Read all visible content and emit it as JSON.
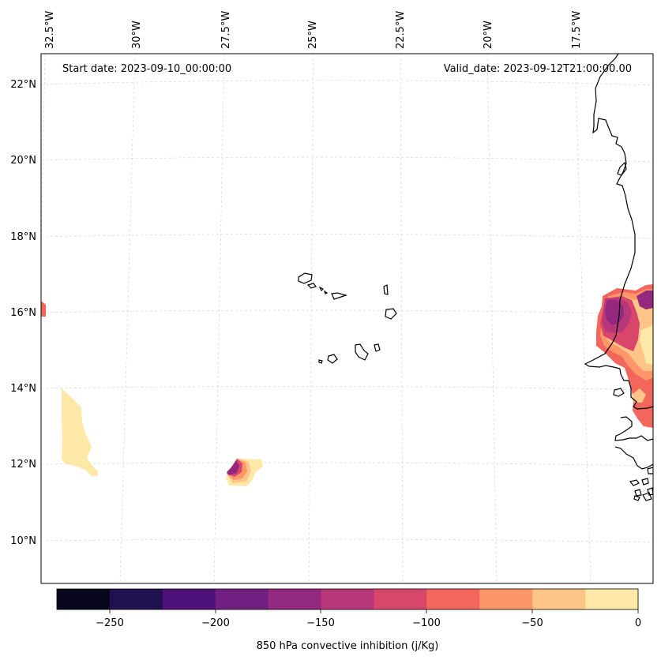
{
  "header": {
    "start_date": "Start date: 2023-09-10_00:00:00",
    "valid_date": "Valid_date: 2023-09-12T21:00:00.00"
  },
  "map": {
    "lon_labels": [
      "32.5°W",
      "30°W",
      "27.5°W",
      "25°W",
      "22.5°W",
      "20°W",
      "17.5°W"
    ],
    "lat_labels": [
      "22°N",
      "20°N",
      "18°N",
      "16°N",
      "14°N",
      "12°N",
      "10°N"
    ],
    "gridlines": "dashed light gray",
    "coastline_color": "#000000",
    "features": [
      "cape-verde-islands",
      "west-africa-coast"
    ]
  },
  "colorbar": {
    "label": "850 hPa convective inhibition (j/Kg)",
    "ticks": [
      "−250",
      "−200",
      "−150",
      "−100",
      "−50",
      "0"
    ],
    "range": [
      -275,
      0
    ],
    "step": 25,
    "colors": [
      "#07061c",
      "#221150",
      "#4f127b",
      "#721f81",
      "#93297e",
      "#b63679",
      "#d8456c",
      "#f1605d",
      "#fc8961",
      "#feb078",
      "#fcfdbf"
    ],
    "colors_display": [
      "#07061c",
      "#221150",
      "#4f127b",
      "#721f81",
      "#93297e",
      "#b73779",
      "#d8466b",
      "#f2665c",
      "#fd9668",
      "#fec488",
      "#fde8a8"
    ]
  }
}
